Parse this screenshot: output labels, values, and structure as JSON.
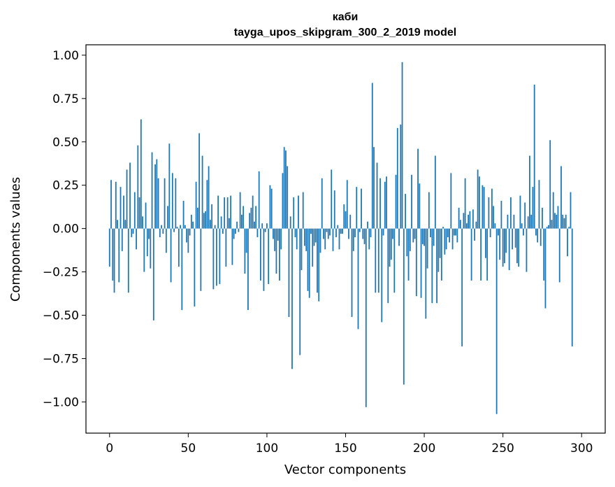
{
  "chart_data": {
    "type": "bar",
    "title": "каби",
    "subtitle": "tayga_upos_skipgram_300_2_2019 model",
    "xlabel": "Vector components",
    "ylabel": "Components values",
    "xlim": [
      -15,
      315
    ],
    "ylim": [
      -1.18,
      1.06
    ],
    "xticks": [
      0,
      50,
      100,
      150,
      200,
      250,
      300
    ],
    "yticks": [
      1.0,
      0.75,
      0.5,
      0.25,
      0.0,
      -0.25,
      -0.5,
      -0.75,
      -1.0
    ],
    "ytick_labels": [
      "1.00",
      "0.75",
      "0.50",
      "0.25",
      "0.00",
      "−0.25",
      "−0.50",
      "−0.75",
      "−1.00"
    ],
    "bar_color": "#1f77b4",
    "grid": false,
    "values": [
      -0.22,
      0.28,
      -0.3,
      -0.37,
      0.27,
      0.05,
      -0.31,
      0.24,
      -0.13,
      0.19,
      0.05,
      0.34,
      -0.37,
      0.38,
      -0.05,
      -0.03,
      0.21,
      -0.12,
      0.48,
      0.18,
      0.63,
      0.07,
      -0.25,
      0.15,
      -0.16,
      -0.06,
      -0.23,
      0.44,
      -0.53,
      0.37,
      0.4,
      0.29,
      -0.05,
      0.02,
      -0.03,
      0.29,
      -0.14,
      0.13,
      0.49,
      -0.31,
      0.32,
      -0.02,
      0.29,
      0.01,
      -0.22,
      0.02,
      -0.47,
      0.16,
      0.02,
      -0.08,
      -0.14,
      -0.04,
      0.08,
      0.04,
      -0.45,
      0.27,
      0.12,
      0.55,
      -0.36,
      0.42,
      0.09,
      0.1,
      0.28,
      0.36,
      0.05,
      0.14,
      -0.35,
      0.02,
      -0.33,
      0.19,
      -0.32,
      0.07,
      -0.03,
      0.18,
      -0.22,
      0.18,
      0.06,
      0.19,
      -0.21,
      -0.06,
      -0.03,
      0.04,
      -0.02,
      0.21,
      0.08,
      0.13,
      -0.26,
      -0.14,
      -0.47,
      0.09,
      0.12,
      0.19,
      0.04,
      0.13,
      -0.05,
      0.33,
      -0.3,
      0.03,
      -0.36,
      -0.02,
      0.03,
      -0.32,
      0.25,
      0.23,
      -0.06,
      -0.13,
      -0.26,
      -0.07,
      -0.3,
      -0.12,
      0.32,
      0.47,
      0.45,
      0.36,
      -0.51,
      0.07,
      -0.81,
      0.18,
      -0.05,
      -0.12,
      0.19,
      -0.73,
      -0.24,
      0.21,
      -0.1,
      -0.13,
      -0.36,
      -0.4,
      -0.03,
      -0.22,
      -0.1,
      -0.08,
      -0.37,
      -0.42,
      -0.14,
      0.29,
      -0.06,
      -0.12,
      -0.02,
      -0.06,
      -0.04,
      0.34,
      -0.13,
      0.22,
      -0.05,
      0.02,
      -0.12,
      -0.03,
      -0.03,
      0.14,
      0.1,
      0.28,
      -0.06,
      0.08,
      -0.51,
      -0.13,
      -0.05,
      0.24,
      -0.58,
      -0.02,
      0.23,
      -0.06,
      -0.09,
      -1.03,
      0.04,
      -0.12,
      -0.05,
      0.84,
      0.47,
      -0.37,
      0.38,
      -0.37,
      0.29,
      -0.54,
      -0.04,
      0.27,
      0.3,
      -0.43,
      -0.22,
      -0.18,
      -0.06,
      -0.37,
      0.31,
      0.58,
      -0.1,
      0.6,
      0.96,
      -0.9,
      0.2,
      -0.16,
      -0.3,
      -0.13,
      0.31,
      -0.08,
      -0.06,
      -0.39,
      0.46,
      0.26,
      -0.4,
      -0.09,
      -0.1,
      -0.52,
      -0.23,
      0.21,
      -0.05,
      -0.43,
      -0.1,
      0.42,
      -0.43,
      -0.25,
      -0.17,
      -0.3,
      0.01,
      -0.15,
      -0.12,
      -0.05,
      -0.08,
      0.32,
      -0.12,
      -0.04,
      -0.04,
      -0.08,
      0.12,
      0.05,
      -0.68,
      0.09,
      0.29,
      0.03,
      0.08,
      0.1,
      -0.3,
      0.11,
      -0.07,
      0.04,
      0.34,
      0.3,
      -0.3,
      0.25,
      0.24,
      -0.17,
      -0.3,
      0.18,
      -0.05,
      0.23,
      0.13,
      0.03,
      -1.07,
      -0.04,
      -0.18,
      0.16,
      -0.22,
      -0.2,
      -0.14,
      0.08,
      -0.24,
      0.18,
      -0.12,
      0.08,
      -0.11,
      -0.2,
      -0.22,
      0.19,
      0.03,
      -0.04,
      0.15,
      -0.25,
      0.07,
      0.42,
      0.08,
      0.24,
      0.83,
      -0.04,
      -0.08,
      0.28,
      -0.1,
      0.12,
      -0.3,
      -0.46,
      0.01,
      0.02,
      0.51,
      0.05,
      0.21,
      0.09,
      0.08,
      0.13,
      -0.31,
      0.36,
      0.08,
      0.06,
      0.08,
      -0.16,
      0.01,
      0.21,
      -0.68
    ]
  }
}
